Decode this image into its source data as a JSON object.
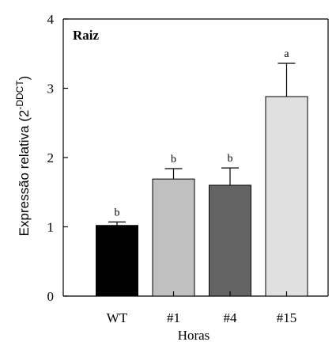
{
  "chart_data": {
    "type": "bar",
    "panel_label": "Raiz",
    "xlabel": "Horas",
    "ylabel": "Expressão relativa (2",
    "ylabel_superscript": "-DDCT",
    "ylabel_close": ")",
    "ylim": [
      0,
      4
    ],
    "yticks": [
      "0",
      "1",
      "2",
      "3",
      "4"
    ],
    "categories": [
      "WT",
      "#1",
      "#4",
      "#15"
    ],
    "values": [
      1.02,
      1.69,
      1.6,
      2.88
    ],
    "errors": [
      0.05,
      0.15,
      0.25,
      0.48
    ],
    "significance": [
      "b",
      "b",
      "b",
      "a"
    ],
    "colors": [
      "#000000",
      "#c0c0c0",
      "#646464",
      "#e0e0e0"
    ],
    "grid": false,
    "legend": "none"
  }
}
